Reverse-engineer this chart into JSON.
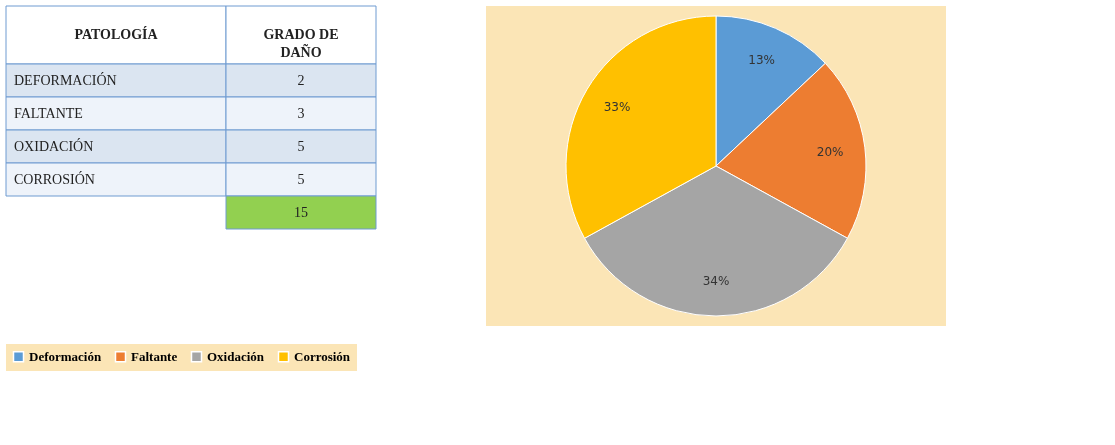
{
  "chart_data": [
    {
      "type": "other",
      "xlabel": "PATOLOGÍA",
      "ylabel": "GRADO DE DAÑO",
      "categories": [
        "DEFORMACIÓN",
        "FALTANTE",
        "OXIDACIÓN",
        "CORROSIÓN"
      ],
      "values": [
        2,
        3,
        5,
        5
      ],
      "data_labels": true,
      "totals": [
        "15"
      ]
    },
    {
      "type": "pie",
      "categories": [
        "Deformación",
        "Faltante",
        "Oxidación",
        "Corrosión"
      ],
      "values": [
        13,
        20,
        34,
        33
      ],
      "colors": [
        "#5b9bd5",
        "#ed7d31",
        "#a5a5a5",
        "#ffc000"
      ],
      "value_labels": [
        "13%",
        "20%",
        "34%",
        "33%"
      ],
      "legend": "bottom"
    }
  ]
}
